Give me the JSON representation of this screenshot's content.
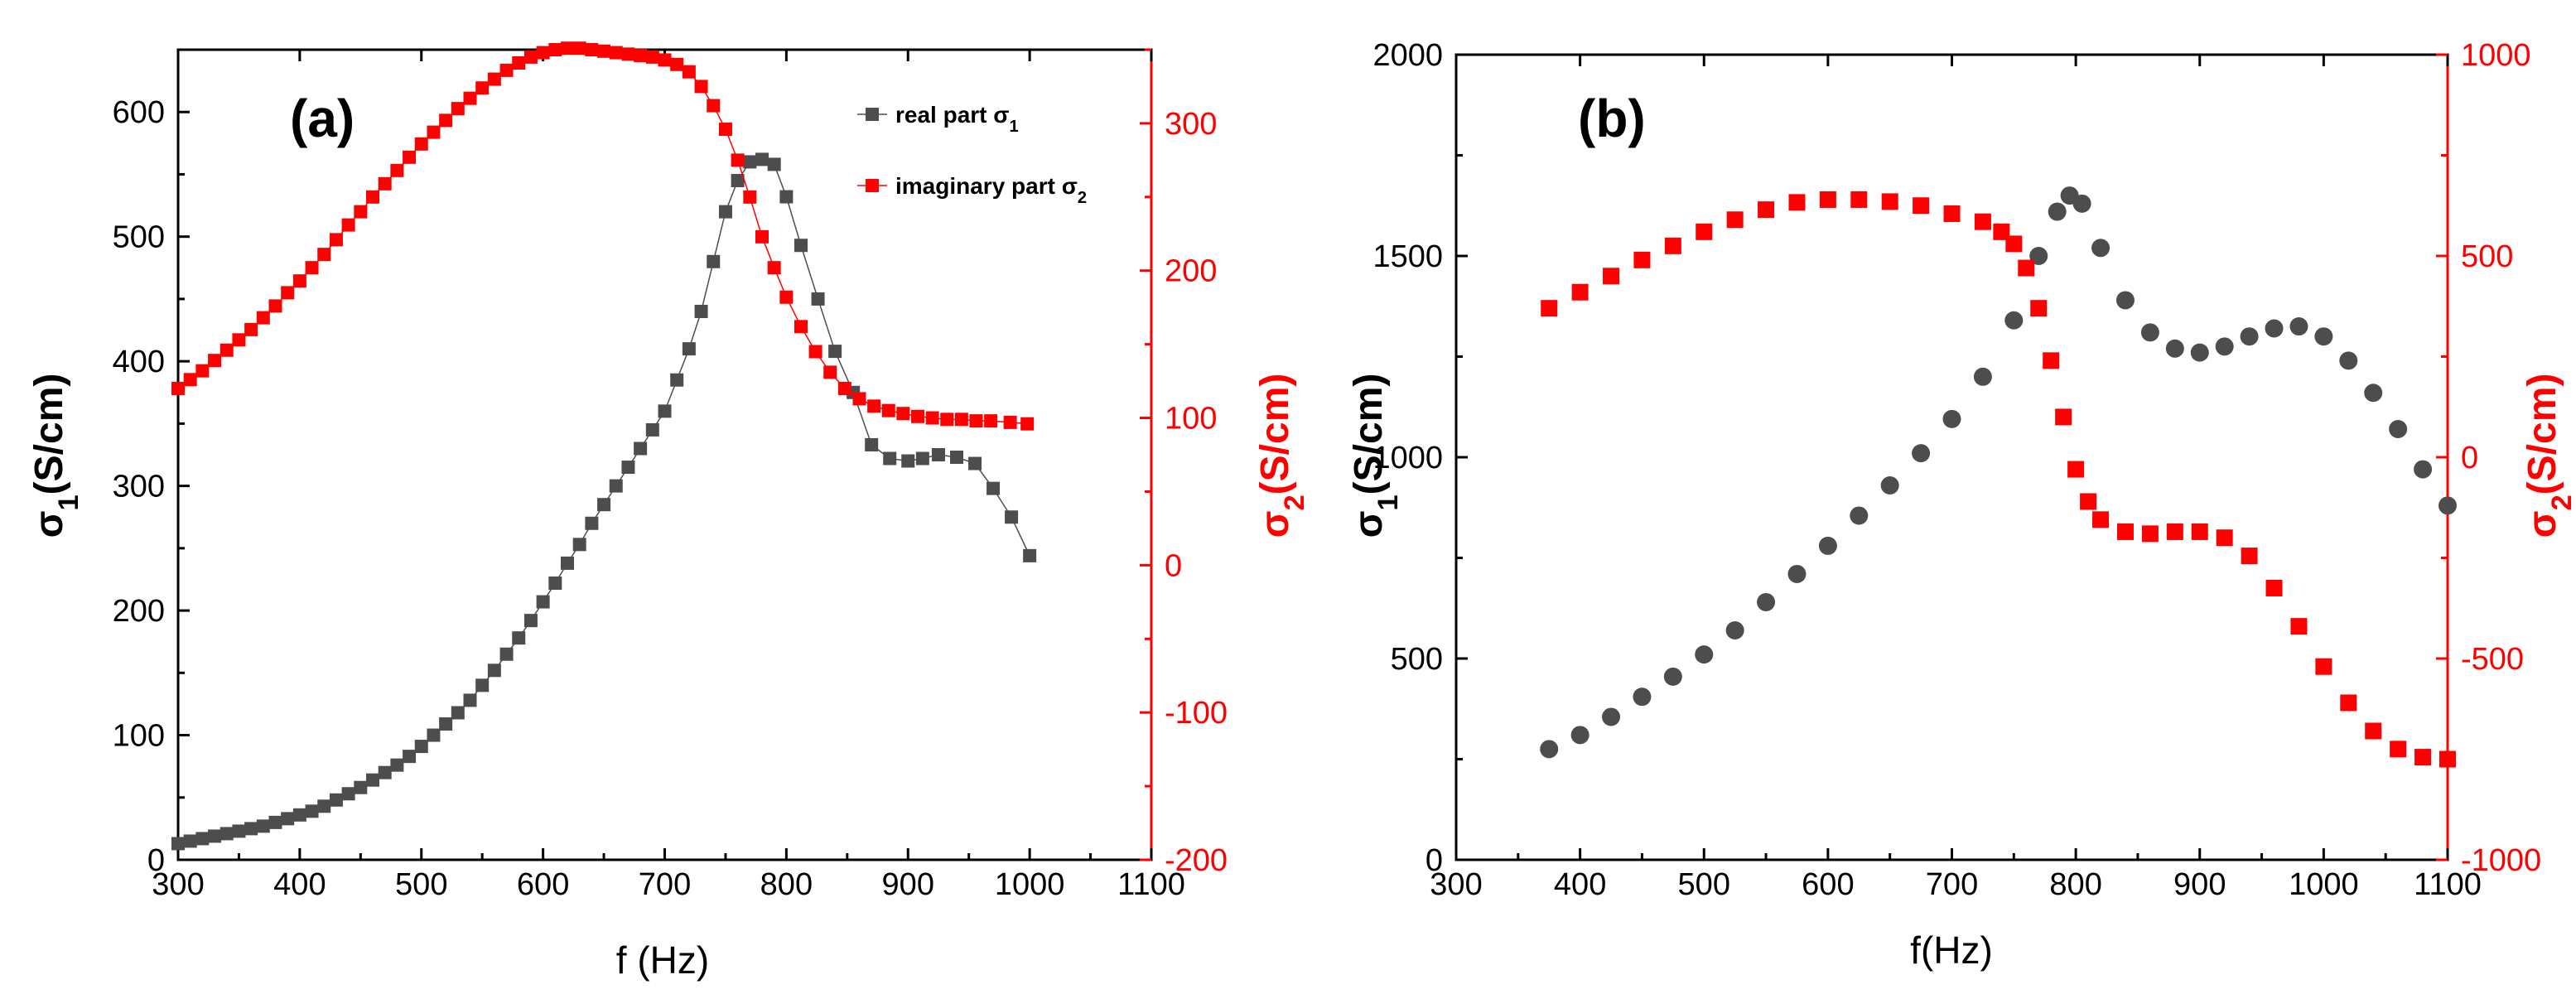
{
  "colors": {
    "real": "#4d4d4d",
    "imag": "#ff0000",
    "axis": "#000000"
  },
  "chart_data": [
    {
      "type": "scatter",
      "panel_label": "(a)",
      "xlabel": "f (Hz)",
      "ylabel_left": {
        "base": "σ",
        "sub": "1",
        "rest": "(S/cm)"
      },
      "ylabel_right": {
        "base": "σ",
        "sub": "2",
        "rest": "(S/cm)"
      },
      "xlim": [
        300,
        1100
      ],
      "ylim_left": [
        0,
        650
      ],
      "ylim_right": [
        -200,
        350
      ],
      "x_ticks": [
        300,
        400,
        500,
        600,
        700,
        800,
        900,
        1000,
        1100
      ],
      "y_left_ticks": [
        0,
        100,
        200,
        300,
        400,
        500,
        600
      ],
      "y_right_ticks": [
        -200,
        -100,
        0,
        100,
        200,
        300
      ],
      "legend": [
        {
          "base": "real part σ",
          "sub": "1"
        },
        {
          "base": "imaginary part σ",
          "sub": "2"
        }
      ],
      "series": [
        {
          "name": "real part σ1",
          "axis": "left",
          "color": "#4d4d4d",
          "marker": "square",
          "connect": "dense-only",
          "x": [
            300,
            310,
            320,
            330,
            340,
            350,
            360,
            370,
            380,
            390,
            400,
            410,
            420,
            430,
            440,
            450,
            460,
            470,
            480,
            490,
            500,
            510,
            520,
            530,
            540,
            550,
            560,
            570,
            580,
            590,
            600,
            610,
            620,
            630,
            640,
            650,
            660,
            670,
            680,
            690,
            700,
            710,
            720,
            730,
            740,
            750,
            760,
            770,
            780,
            790,
            800,
            812,
            826,
            840,
            855,
            870,
            885,
            900,
            912,
            925,
            940,
            955,
            970,
            985,
            1000
          ],
          "y": [
            13,
            15,
            17,
            19,
            21,
            23,
            25,
            27,
            30,
            33,
            36,
            39,
            43,
            48,
            53,
            58,
            64,
            70,
            76,
            83,
            91,
            100,
            109,
            118,
            128,
            140,
            152,
            165,
            178,
            192,
            207,
            222,
            238,
            253,
            270,
            285,
            300,
            315,
            330,
            345,
            360,
            385,
            410,
            440,
            480,
            520,
            545,
            560,
            562,
            558,
            532,
            493,
            450,
            408,
            375,
            333,
            322,
            320,
            322,
            325,
            323,
            318,
            298,
            275,
            244
          ]
        },
        {
          "name": "imaginary part σ2",
          "axis": "right",
          "color": "#ff0000",
          "marker": "square",
          "connect": "dense-only",
          "x": [
            300,
            310,
            320,
            330,
            340,
            350,
            360,
            370,
            380,
            390,
            400,
            410,
            420,
            430,
            440,
            450,
            460,
            470,
            480,
            490,
            500,
            510,
            520,
            530,
            540,
            550,
            560,
            570,
            580,
            590,
            600,
            610,
            620,
            630,
            640,
            650,
            660,
            670,
            680,
            690,
            700,
            710,
            720,
            730,
            740,
            750,
            760,
            770,
            780,
            790,
            800,
            812,
            824,
            836,
            848,
            860,
            872,
            884,
            896,
            908,
            920,
            932,
            944,
            956,
            968,
            984,
            998
          ],
          "y": [
            120,
            126,
            132,
            139,
            146,
            153,
            160,
            168,
            176,
            185,
            193,
            202,
            211,
            221,
            231,
            240,
            250,
            259,
            268,
            277,
            286,
            294,
            302,
            310,
            317,
            324,
            330,
            336,
            341,
            345,
            348,
            350,
            351,
            351,
            350,
            349,
            348,
            347,
            346,
            345,
            343,
            340,
            335,
            325,
            312,
            296,
            275,
            250,
            223,
            202,
            182,
            162,
            145,
            131,
            120,
            113,
            108,
            105,
            103,
            101,
            100,
            99,
            99,
            98,
            98,
            97,
            96
          ]
        }
      ]
    },
    {
      "type": "scatter",
      "panel_label": "(b)",
      "xlabel": "f(Hz)",
      "ylabel_left": {
        "base": "σ",
        "sub": "1",
        "rest": "(S/cm)"
      },
      "ylabel_right": {
        "base": "σ",
        "sub": "2",
        "rest": "(S/cm)"
      },
      "xlim": [
        300,
        1100
      ],
      "ylim_left": [
        0,
        2000
      ],
      "ylim_right": [
        -1000,
        1000
      ],
      "x_ticks": [
        300,
        400,
        500,
        600,
        700,
        800,
        900,
        1000,
        1100
      ],
      "y_left_ticks": [
        0,
        500,
        1000,
        1500,
        2000
      ],
      "y_right_ticks": [
        -1000,
        -500,
        0,
        500,
        1000
      ],
      "legend": [],
      "series": [
        {
          "name": "real part σ1",
          "axis": "left",
          "color": "#4d4d4d",
          "marker": "circle",
          "connect": "none",
          "x": [
            375,
            400,
            425,
            450,
            475,
            500,
            525,
            550,
            575,
            600,
            625,
            650,
            675,
            700,
            725,
            750,
            770,
            785,
            795,
            805,
            820,
            840,
            860,
            880,
            900,
            920,
            940,
            960,
            980,
            1000,
            1020,
            1040,
            1060,
            1080,
            1100
          ],
          "y": [
            275,
            310,
            355,
            405,
            455,
            510,
            570,
            640,
            710,
            780,
            855,
            930,
            1010,
            1095,
            1200,
            1340,
            1500,
            1610,
            1650,
            1630,
            1520,
            1390,
            1310,
            1270,
            1260,
            1275,
            1300,
            1320,
            1325,
            1300,
            1240,
            1160,
            1070,
            970,
            880
          ]
        },
        {
          "name": "imaginary part σ2",
          "axis": "right",
          "color": "#ff0000",
          "marker": "square",
          "connect": "none",
          "x": [
            375,
            400,
            425,
            450,
            475,
            500,
            525,
            550,
            575,
            600,
            625,
            650,
            675,
            700,
            725,
            740,
            750,
            760,
            770,
            780,
            790,
            800,
            810,
            820,
            840,
            860,
            880,
            900,
            920,
            940,
            960,
            980,
            1000,
            1020,
            1040,
            1060,
            1080,
            1100
          ],
          "y": [
            370,
            410,
            450,
            490,
            525,
            560,
            590,
            615,
            633,
            640,
            640,
            635,
            625,
            605,
            585,
            560,
            530,
            470,
            370,
            240,
            100,
            -30,
            -110,
            -155,
            -185,
            -190,
            -185,
            -185,
            -200,
            -245,
            -325,
            -420,
            -520,
            -610,
            -680,
            -725,
            -745,
            -750
          ]
        }
      ]
    }
  ]
}
